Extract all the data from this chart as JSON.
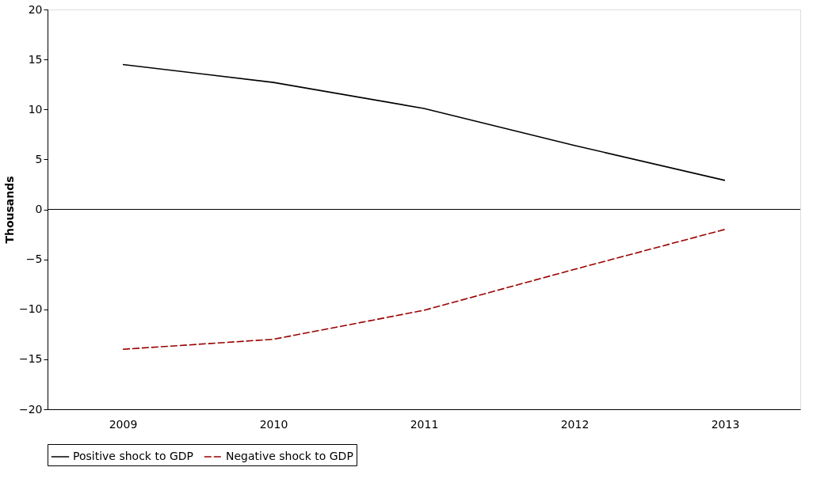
{
  "chart_data": {
    "type": "line",
    "ylabel": "Thousands",
    "categories": [
      "2009",
      "2010",
      "2011",
      "2012",
      "2013"
    ],
    "series": [
      {
        "name": "Positive shock to GDP",
        "color": "#000000",
        "line_style": "solid",
        "values": [
          14.5,
          12.7,
          10.1,
          6.4,
          2.9
        ]
      },
      {
        "name": "Negative shock to GDP",
        "color": "#9b0000",
        "line_style": "dashed",
        "values": [
          -14,
          -13,
          -10.1,
          -6,
          -2
        ]
      }
    ],
    "ylim": [
      -20,
      20
    ],
    "yticks": [
      -20,
      -15,
      -10,
      -5,
      0,
      5,
      10,
      15,
      20
    ],
    "grid": false,
    "legend": "bottom",
    "marker": "none",
    "ref_lines": [
      {
        "axis": "y",
        "value": 0,
        "color": "#000000"
      }
    ]
  }
}
